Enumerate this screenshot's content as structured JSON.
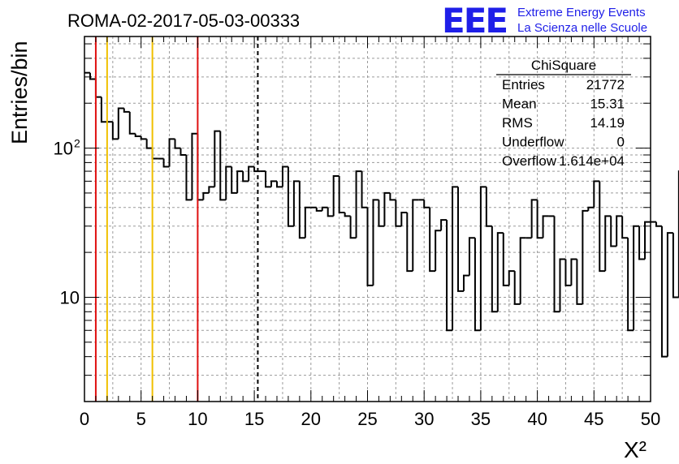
{
  "chart_data": {
    "type": "histogram",
    "title": "ROMA-02-2017-05-03-00333",
    "xlabel": "X²",
    "ylabel": "Entries/bin",
    "xlim": [
      0,
      50
    ],
    "ylim": [
      2,
      560
    ],
    "log_y": true,
    "bin_width": 0.5,
    "x_ticks": [
      "0",
      "5",
      "10",
      "15",
      "20",
      "25",
      "30",
      "35",
      "40",
      "45",
      "50"
    ],
    "y_ticks": [
      {
        "value": 10,
        "label": "10"
      },
      {
        "value": 100,
        "label": "10",
        "sup": "2"
      }
    ],
    "values": [
      320,
      290,
      220,
      150,
      150,
      115,
      185,
      175,
      125,
      120,
      115,
      100,
      85,
      85,
      75,
      115,
      100,
      90,
      45,
      125,
      45,
      50,
      55,
      130,
      45,
      75,
      50,
      70,
      60,
      75,
      70,
      70,
      55,
      60,
      55,
      75,
      30,
      60,
      25,
      40,
      40,
      38,
      40,
      35,
      65,
      37,
      35,
      25,
      70,
      40,
      12,
      45,
      30,
      50,
      45,
      30,
      37,
      15,
      45,
      45,
      40,
      15,
      28,
      33,
      6,
      55,
      11,
      14,
      25,
      6,
      55,
      30,
      8,
      27,
      12,
      15,
      9,
      25,
      25,
      45,
      25,
      35,
      35,
      8,
      18,
      12,
      18,
      9,
      38,
      40,
      60,
      15,
      35,
      22,
      35,
      25,
      6,
      30,
      18,
      32,
      32,
      30,
      4,
      27,
      10,
      70,
      18,
      15,
      40,
      40,
      15,
      13,
      14,
      45,
      25,
      25,
      14,
      18,
      14,
      14,
      15,
      12,
      35,
      40,
      18,
      19,
      13,
      14,
      12,
      16,
      35,
      20,
      21,
      15,
      13,
      14,
      35,
      10,
      30,
      35,
      40,
      30,
      12,
      18,
      25,
      35,
      60,
      50,
      15,
      20
    ],
    "vertical_lines": [
      {
        "x": 1,
        "color": "#e01010",
        "style": "solid"
      },
      {
        "x": 2,
        "color": "#f0c000",
        "style": "solid"
      },
      {
        "x": 6,
        "color": "#f0c000",
        "style": "solid"
      },
      {
        "x": 10,
        "color": "#e01010",
        "style": "solid"
      },
      {
        "x": 15.31,
        "color": "#000000",
        "style": "dashed"
      }
    ],
    "grid": true,
    "stats": {
      "title": "ChiSquare",
      "rows": [
        {
          "label": "Entries",
          "value": "21772"
        },
        {
          "label": "Mean",
          "value": "15.31"
        },
        {
          "label": "RMS",
          "value": "14.19"
        },
        {
          "label": "Underflow",
          "value": "0"
        },
        {
          "label": "Overflow",
          "value": "1.614e+04"
        }
      ]
    }
  },
  "logo": {
    "letters": "EEE",
    "line1": "Extreme Energy Events",
    "line2": "La Scienza nelle Scuole",
    "color": "#1f1fe8"
  }
}
